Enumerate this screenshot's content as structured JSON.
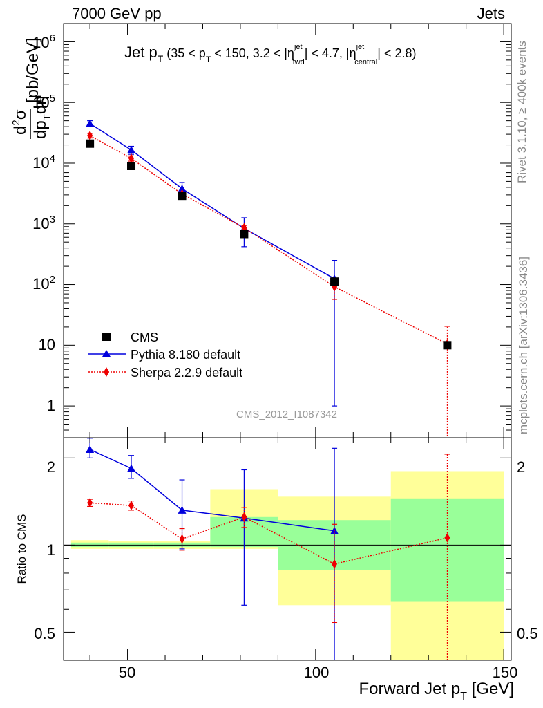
{
  "header": {
    "left": "7000 GeV pp",
    "right": "Jets",
    "rivet": "Rivet 3.1.10, ≥ 400k events",
    "mcplots": "mcplots.cern.ch [arXiv:1306.3436]"
  },
  "colors": {
    "cms": "#000000",
    "pythia": "#0000dd",
    "sherpa": "#ee0000",
    "band_outer": "#ffff99",
    "band_inner": "#99ff99"
  },
  "chart_data": [
    {
      "type": "scatter",
      "title": "Jet pT (35 < pT < 150, 3.2 < |eta_fwd^jet| < 4.7, |eta_central^jet| < 2.8)",
      "watermark": "CMS_2012_I1087342",
      "ylabel": "d²σ/dp_T dη [pb/GeV]",
      "xlabel": "",
      "yscale": "log",
      "xlim": [
        33,
        152
      ],
      "ylim": [
        0.3,
        2000000
      ],
      "legend_position": "bottom-left",
      "y_tick_labels": [
        "1",
        "10",
        "10²",
        "10³",
        "10⁴",
        "10⁵",
        "10⁶"
      ],
      "series": [
        {
          "name": "CMS",
          "marker": "square",
          "x": [
            40,
            51,
            64.5,
            81,
            105,
            135
          ],
          "y": [
            21000,
            9000,
            2900,
            680,
            112,
            10
          ],
          "xerr": [
            [
              5,
              5
            ],
            [
              6,
              6
            ],
            [
              7.5,
              7.5
            ],
            [
              9,
              9
            ],
            [
              15,
              15
            ],
            [
              15,
              15
            ]
          ],
          "yerr": []
        },
        {
          "name": "Pythia 8.180 default",
          "marker": "triangle",
          "x": [
            40,
            51,
            64.5,
            81,
            105
          ],
          "y": [
            45000,
            16500,
            3800,
            840,
            125
          ],
          "yerr": [
            [
              5000,
              5000
            ],
            [
              2500,
              2500
            ],
            [
              1000,
              1000
            ],
            [
              420,
              420
            ],
            [
              124,
              125
            ]
          ]
        },
        {
          "name": "Sherpa 2.2.9 default",
          "marker": "diamond",
          "x": [
            40,
            51,
            64.5,
            81,
            105,
            135
          ],
          "y": [
            28500,
            12000,
            3100,
            860,
            92,
            10.5
          ],
          "yerr": [
            [
              2500,
              2500
            ],
            [
              1200,
              1200
            ],
            [
              250,
              250
            ],
            [
              80,
              80
            ],
            [
              35,
              35
            ],
            [
              10.4,
              10
            ]
          ]
        }
      ]
    },
    {
      "type": "scatter",
      "title": "",
      "xlabel": "Forward Jet p_T [GeV]",
      "ylabel": "Ratio to CMS",
      "yscale": "log",
      "xlim": [
        33,
        152
      ],
      "ylim": [
        0.4,
        2.35
      ],
      "x_tick_labels": [
        "50",
        "100",
        "150"
      ],
      "y_tick_labels": [
        "0.5",
        "1",
        "2"
      ],
      "reference_line": 1,
      "bands": [
        {
          "xmin": 35,
          "xmax": 45,
          "outer": [
            0.97,
            1.04
          ],
          "inner": [
            0.985,
            1.02
          ]
        },
        {
          "xmin": 45,
          "xmax": 57,
          "outer": [
            0.97,
            1.035
          ],
          "inner": [
            0.985,
            1.02
          ]
        },
        {
          "xmin": 57,
          "xmax": 72,
          "outer": [
            0.97,
            1.035
          ],
          "inner": [
            0.985,
            1.02
          ]
        },
        {
          "xmin": 72,
          "xmax": 90,
          "outer": [
            0.97,
            1.56
          ],
          "inner": [
            0.985,
            1.25
          ]
        },
        {
          "xmin": 90,
          "xmax": 120,
          "outer": [
            0.62,
            1.47
          ],
          "inner": [
            0.82,
            1.22
          ]
        },
        {
          "xmin": 120,
          "xmax": 150,
          "outer": [
            0.4,
            1.8
          ],
          "inner": [
            0.64,
            1.45
          ]
        }
      ],
      "series": [
        {
          "name": "Pythia 8.180 default",
          "x": [
            40,
            51,
            64.5,
            81,
            105
          ],
          "y": [
            2.14,
            1.84,
            1.32,
            1.24,
            1.12
          ],
          "yerr": [
            [
              0.14,
              0.2
            ],
            [
              0.14,
              0.2
            ],
            [
              0.35,
              0.36
            ],
            [
              0.62,
              0.58
            ],
            [
              0.72,
              1.04
            ]
          ]
        },
        {
          "name": "Sherpa 2.2.9 default",
          "x": [
            40,
            51,
            64.5,
            81,
            105,
            135
          ],
          "y": [
            1.4,
            1.37,
            1.05,
            1.25,
            0.86,
            1.06
          ],
          "yerr": [
            [
              0.04,
              0.04
            ],
            [
              0.05,
              0.05
            ],
            [
              0.09,
              0.09
            ],
            [
              0.1,
              0.1
            ],
            [
              0.32,
              0.32
            ],
            [
              0.66,
              1.0
            ]
          ]
        }
      ]
    }
  ]
}
